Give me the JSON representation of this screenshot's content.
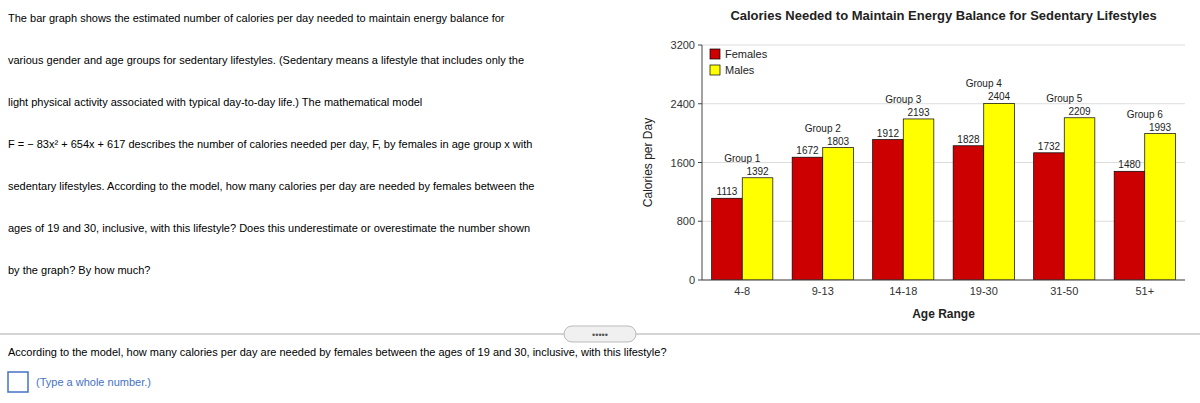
{
  "chart_data": {
    "type": "bar",
    "title": "Calories Needed to Maintain Energy Balance for Sedentary Lifestyles",
    "xlabel": "Age Range",
    "ylabel": "Calories per Day",
    "categories": [
      "4-8",
      "9-13",
      "14-18",
      "19-30",
      "31-50",
      "51+"
    ],
    "group_labels": [
      "Group 1",
      "Group 2",
      "Group 3",
      "Group 4",
      "Group 5",
      "Group 6"
    ],
    "series": [
      {
        "name": "Females",
        "color": "#cc0000",
        "values": [
          1113,
          1672,
          1912,
          1828,
          1732,
          1480
        ]
      },
      {
        "name": "Males",
        "color": "#ffff00",
        "values": [
          1392,
          1803,
          2193,
          2404,
          2209,
          1993
        ]
      }
    ],
    "ylim": [
      0,
      3200
    ],
    "yticks": [
      0,
      800,
      1600,
      2400,
      3200
    ],
    "grid": true,
    "legend": "upper left",
    "data_labels": true
  },
  "page": {
    "paragraph": [
      "The bar graph shows the estimated number of calories per day needed to maintain energy balance for",
      "various gender and age groups for sedentary lifestyles. (Sedentary means a lifestyle that includes only the",
      "light physical activity associated with typical day-to-day life.) The mathematical model",
      "F = − 83x² + 654x + 617 describes the number of calories needed per day, F, by females in age group x with",
      "sedentary lifestyles. According to the model, how many calories per day are needed by females between the",
      "ages of 19 and 30, inclusive, with this lifestyle? Does this underestimate or overestimate the number shown",
      "by the graph? By how much?"
    ],
    "question": "According to the model, how many calories per day are needed by females between the ages of 19 and 30, inclusive, with this lifestyle?",
    "answer_label": "(Type a whole number.)",
    "scrollbar": "•••••"
  }
}
